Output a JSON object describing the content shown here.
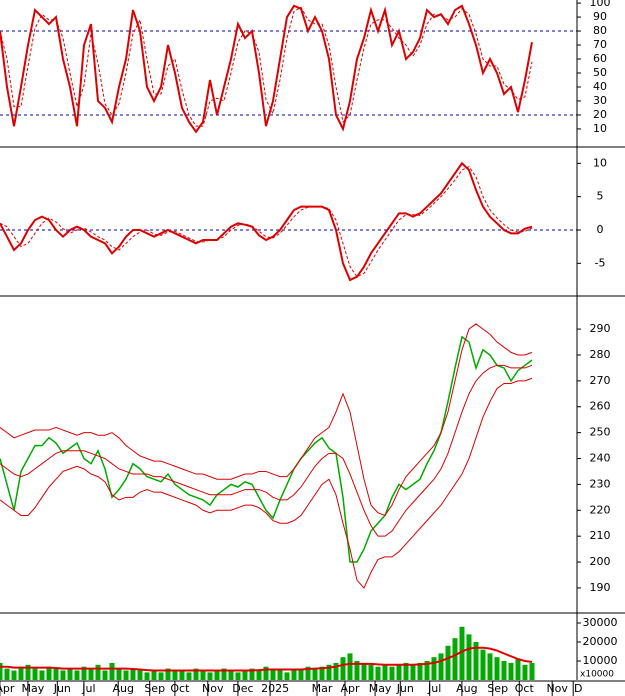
{
  "x_axis": {
    "xlim": [
      0,
      82.43
    ],
    "xticks": [
      {
        "value": 0.7,
        "label": "Apr"
      },
      {
        "value": 4.7,
        "label": "May"
      },
      {
        "value": 8.9,
        "label": "Jun"
      },
      {
        "value": 12.7,
        "label": "Jul"
      },
      {
        "value": 17.6,
        "label": "Aug"
      },
      {
        "value": 22.1,
        "label": "Sep"
      },
      {
        "value": 25.7,
        "label": "Oct"
      },
      {
        "value": 30.4,
        "label": "Nov"
      },
      {
        "value": 34.7,
        "label": "Dec"
      },
      {
        "value": 39.3,
        "label": "2025"
      },
      {
        "value": 46,
        "label": "Mar"
      },
      {
        "value": 50,
        "label": "Apr"
      },
      {
        "value": 54.3,
        "label": "May"
      },
      {
        "value": 57.9,
        "label": "Jun"
      },
      {
        "value": 62.1,
        "label": "Jul"
      },
      {
        "value": 66.7,
        "label": "Aug"
      },
      {
        "value": 71.1,
        "label": "Sep"
      },
      {
        "value": 74.9,
        "label": "Oct"
      },
      {
        "value": 79.6,
        "label": "Nov"
      },
      {
        "value": 82.6,
        "label": "D"
      }
    ]
  },
  "chart_data": [
    {
      "type": "line",
      "ylim": [
        -2.2,
        102.2
      ],
      "yticks": [
        100,
        90,
        80,
        70,
        60,
        50,
        40,
        30,
        20,
        10
      ],
      "ref_lines": [
        80,
        20
      ],
      "color": "#dd0000",
      "ref_color": "#0000aa",
      "series": [
        {
          "style": "solid",
          "values": [
            80,
            40,
            12,
            40,
            70,
            95,
            90,
            85,
            90,
            60,
            40,
            12,
            70,
            85,
            30,
            25,
            15,
            40,
            60,
            95,
            80,
            40,
            30,
            40,
            70,
            50,
            25,
            15,
            8,
            15,
            45,
            20,
            40,
            60,
            85,
            75,
            80,
            50,
            12,
            30,
            60,
            90,
            98,
            96,
            80,
            90,
            80,
            60,
            20,
            10,
            30,
            60,
            75,
            95,
            80,
            95,
            70,
            80,
            60,
            65,
            75,
            95,
            90,
            92,
            85,
            95,
            98,
            85,
            70,
            50,
            60,
            50,
            35,
            40,
            22,
            45,
            72
          ]
        },
        {
          "style": "dashed",
          "values": [
            80,
            60,
            26,
            26,
            55,
            82,
            92,
            88,
            88,
            75,
            50,
            26,
            41,
            78,
            57,
            28,
            20,
            28,
            50,
            78,
            88,
            60,
            35,
            35,
            55,
            60,
            38,
            20,
            12,
            12,
            30,
            32,
            30,
            50,
            72,
            80,
            78,
            65,
            31,
            21,
            45,
            75,
            94,
            97,
            88,
            85,
            85,
            70,
            40,
            15,
            20,
            45,
            68,
            85,
            88,
            88,
            82,
            75,
            70,
            62,
            70,
            85,
            92,
            91,
            88,
            90,
            96,
            92,
            78,
            60,
            55,
            55,
            42,
            38,
            31,
            33,
            58
          ]
        }
      ]
    },
    {
      "type": "line",
      "ylim": [
        -9.75,
        12.3
      ],
      "yticks": [
        10,
        5,
        0,
        -5
      ],
      "ref_lines": [
        0
      ],
      "color": "#dd0000",
      "ref_color": "#0000aa",
      "series": [
        {
          "style": "solid",
          "values": [
            1,
            -1,
            -3,
            -2,
            0,
            1.5,
            2,
            1.5,
            0,
            -1,
            0,
            0.5,
            0,
            -1,
            -1.5,
            -2,
            -3.5,
            -2.5,
            -1,
            0,
            0,
            -0.5,
            -1,
            -0.5,
            0,
            -0.5,
            -1,
            -1.5,
            -2,
            -1.5,
            -1.5,
            -1.5,
            -0.5,
            0.5,
            1,
            0.8,
            0.5,
            -0.8,
            -1.5,
            -1,
            0,
            1.5,
            3,
            3.5,
            3.5,
            3.5,
            3.5,
            3,
            0,
            -5,
            -7.5,
            -7,
            -5.5,
            -3.5,
            -2,
            -0.5,
            1,
            2.5,
            2.5,
            2,
            2.5,
            3.5,
            4.5,
            5.5,
            7,
            8.5,
            10,
            9,
            6,
            3.5,
            2,
            1,
            0,
            -0.5,
            -0.5,
            0.2,
            0.5
          ]
        },
        {
          "style": "dashed",
          "values": [
            1,
            0.5,
            -1,
            -2.5,
            -2,
            -0.5,
            1,
            1.8,
            1.2,
            0.2,
            -0.5,
            0,
            0.3,
            -0.3,
            -1,
            -1.5,
            -2.5,
            -3,
            -2,
            -1,
            -0.3,
            0,
            -0.6,
            -0.8,
            -0.3,
            -0.2,
            -0.7,
            -1.2,
            -1.7,
            -1.8,
            -1.5,
            -1.5,
            -1,
            0,
            0.7,
            0.9,
            0.6,
            -0.2,
            -1,
            -1.2,
            -0.5,
            0.7,
            2,
            3,
            3.4,
            3.5,
            3.5,
            3.2,
            1.5,
            -2,
            -5.5,
            -7,
            -6.5,
            -4.8,
            -3,
            -1.5,
            0,
            1.5,
            2.3,
            2.3,
            2.2,
            3,
            4,
            5,
            6.2,
            7.5,
            9,
            9.5,
            8,
            5,
            3,
            1.8,
            0.8,
            0,
            -0.3,
            -0.2,
            0.3
          ]
        }
      ]
    },
    {
      "type": "line",
      "ylim": [
        180.7,
        302.4
      ],
      "yticks": [
        290,
        280,
        270,
        260,
        250,
        240,
        230,
        220,
        210,
        200,
        190
      ],
      "series": [
        {
          "style": "price",
          "color": "#00aa00",
          "values": [
            240,
            230,
            220,
            235,
            240,
            245,
            245,
            248,
            246,
            242,
            244,
            246,
            240,
            238,
            243,
            236,
            225,
            228,
            232,
            238,
            236,
            233,
            232,
            231,
            234,
            230,
            228,
            226,
            225,
            224,
            222,
            226,
            228,
            230,
            229,
            231,
            230,
            225,
            220,
            217,
            224,
            230,
            236,
            240,
            243,
            246,
            248,
            244,
            242,
            225,
            200,
            200,
            205,
            212,
            215,
            218,
            225,
            230,
            228,
            230,
            232,
            238,
            243,
            250,
            262,
            275,
            287,
            285,
            275,
            282,
            280,
            276,
            275,
            270,
            274,
            276,
            278
          ]
        },
        {
          "style": "band",
          "color": "#dd0000",
          "values": [
            238,
            236,
            234,
            233,
            234,
            236,
            238,
            240,
            242,
            243,
            243,
            243,
            243,
            242,
            241,
            240,
            238,
            236,
            235,
            234,
            234,
            234,
            233,
            233,
            232,
            231,
            230,
            229,
            228,
            227,
            226,
            226,
            226,
            226,
            227,
            228,
            228,
            228,
            227,
            225,
            224,
            224,
            226,
            229,
            233,
            237,
            240,
            242,
            242,
            240,
            234,
            227,
            220,
            214,
            210,
            210,
            212,
            216,
            220,
            223,
            226,
            229,
            232,
            236,
            242,
            250,
            258,
            265,
            270,
            273,
            275,
            276,
            276,
            275,
            275,
            275,
            276
          ]
        },
        {
          "style": "band",
          "color": "#dd0000",
          "values": [
            252,
            250,
            248,
            249,
            250,
            251,
            251,
            251,
            252,
            251,
            250,
            249,
            250,
            250,
            249,
            249,
            250,
            248,
            245,
            243,
            241,
            240,
            239,
            239,
            238,
            237,
            236,
            235,
            234,
            234,
            233,
            232,
            232,
            232,
            233,
            234,
            234,
            235,
            235,
            234,
            233,
            233,
            236,
            240,
            244,
            248,
            250,
            252,
            258,
            265,
            258,
            245,
            232,
            222,
            219,
            218,
            222,
            228,
            233,
            236,
            239,
            242,
            245,
            250,
            258,
            270,
            282,
            290,
            292,
            290,
            288,
            285,
            283,
            281,
            280,
            280,
            281
          ]
        },
        {
          "style": "band",
          "color": "#dd0000",
          "values": [
            224,
            222,
            220,
            218,
            218,
            221,
            225,
            229,
            232,
            235,
            236,
            237,
            236,
            234,
            233,
            231,
            226,
            224,
            225,
            225,
            227,
            228,
            227,
            227,
            226,
            225,
            224,
            223,
            222,
            220,
            219,
            220,
            220,
            220,
            221,
            222,
            222,
            221,
            219,
            216,
            215,
            215,
            216,
            218,
            222,
            226,
            230,
            232,
            226,
            215,
            205,
            193,
            190,
            196,
            201,
            202,
            202,
            204,
            207,
            210,
            213,
            216,
            219,
            222,
            226,
            230,
            234,
            240,
            248,
            256,
            262,
            267,
            269,
            269,
            270,
            270,
            271
          ]
        }
      ]
    },
    {
      "type": "bar",
      "ylim": [
        0,
        34200
      ],
      "yticks": [
        30000,
        20000,
        10000
      ],
      "y_unit_label": "x10000",
      "color": "#00aa00",
      "line_color": "#dd0000",
      "values": [
        9000,
        6000,
        5000,
        7000,
        8000,
        6000,
        5000,
        7000,
        6000,
        5000,
        6000,
        5000,
        7000,
        6000,
        8000,
        5000,
        9000,
        6000,
        5000,
        6000,
        5000,
        4000,
        5000,
        4000,
        6000,
        5000,
        5000,
        4000,
        6000,
        5000,
        4000,
        5000,
        6000,
        5000,
        4000,
        5000,
        6000,
        5000,
        7000,
        6000,
        5000,
        4000,
        5000,
        6000,
        7000,
        6000,
        7000,
        8000,
        9000,
        12000,
        14000,
        10000,
        9000,
        8000,
        7000,
        8000,
        7000,
        8000,
        9000,
        8000,
        9000,
        10000,
        12000,
        14000,
        18000,
        22000,
        28000,
        24000,
        20000,
        16000,
        14000,
        12000,
        10000,
        9000,
        11000,
        8000,
        9000
      ],
      "ma": [
        7000,
        7000,
        6500,
        6500,
        6500,
        6500,
        6500,
        6500,
        6300,
        6000,
        6000,
        6000,
        6000,
        6000,
        6000,
        6000,
        6000,
        6000,
        6000,
        5800,
        5500,
        5200,
        5000,
        5000,
        5000,
        5000,
        5000,
        5000,
        5000,
        5000,
        5000,
        5000,
        5000,
        5000,
        5000,
        5000,
        5000,
        5200,
        5500,
        5500,
        5500,
        5500,
        5500,
        5500,
        5800,
        6000,
        6200,
        6500,
        7000,
        8000,
        8500,
        8500,
        8500,
        8500,
        8200,
        8000,
        8000,
        8000,
        8000,
        8000,
        8200,
        8500,
        9000,
        10000,
        11500,
        13000,
        15000,
        16500,
        17000,
        17000,
        16500,
        15500,
        14000,
        12500,
        11000,
        10000,
        9500
      ]
    }
  ]
}
